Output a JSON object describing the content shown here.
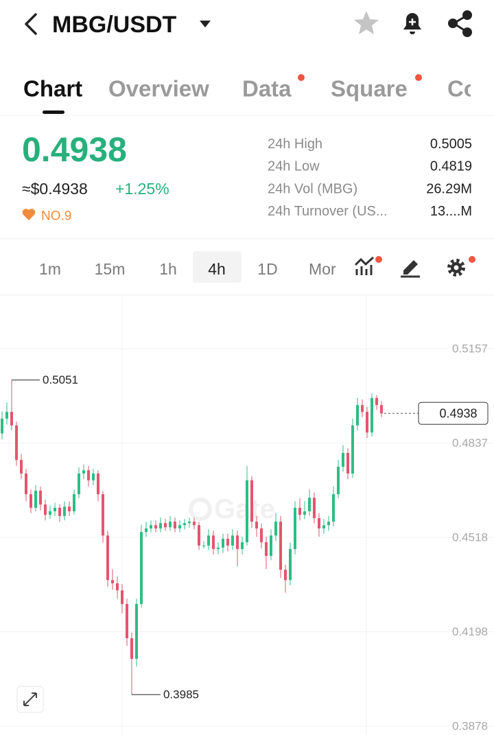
{
  "header": {
    "pair": "MBG/USDT"
  },
  "tabs": [
    "Chart",
    "Overview",
    "Data",
    "Square",
    "Co"
  ],
  "ticker": {
    "price": "0.4938",
    "usd": "≈$0.4938",
    "change": "+1.25%",
    "rank": "NO.9",
    "stats": [
      {
        "label": "24h High",
        "value": "0.5005"
      },
      {
        "label": "24h Low",
        "value": "0.4819"
      },
      {
        "label": "24h Vol (MBG)",
        "value": "26.29M"
      },
      {
        "label": "24h Turnover (US...",
        "value": "13....M"
      }
    ]
  },
  "intervals": [
    "1m",
    "15m",
    "1h",
    "4h",
    "1D",
    "Mor"
  ],
  "chart_data": {
    "type": "candlestick",
    "watermark": "Gate",
    "up_color": "#2ebd85",
    "down_color": "#e2566e",
    "grid": true,
    "ylim": [
      0.3848,
      0.5334
    ],
    "yticks": [
      0.5157,
      0.4837,
      0.4518,
      0.4198,
      0.3878
    ],
    "open": [
      0.487,
      0.492,
      0.4943,
      0.4897,
      0.478,
      0.4734,
      0.4664,
      0.4618,
      0.4676,
      0.4629,
      0.4594,
      0.4606,
      0.4618,
      0.459,
      0.4622,
      0.4606,
      0.4664,
      0.4734,
      0.4745,
      0.4711,
      0.4734,
      0.4664,
      0.4524,
      0.4373,
      0.4362,
      0.4338,
      0.4292,
      0.4176,
      0.4106,
      0.4292,
      0.4536,
      0.4548,
      0.4559,
      0.4548,
      0.4566,
      0.4552,
      0.4571,
      0.4548,
      0.4559,
      0.4566,
      0.4571,
      0.4559,
      0.449,
      0.449,
      0.4524,
      0.4478,
      0.4483,
      0.4513,
      0.449,
      0.4524,
      0.4478,
      0.4501,
      0.4711,
      0.4571,
      0.4548,
      0.4501,
      0.4455,
      0.4524,
      0.4571,
      0.4408,
      0.4373,
      0.4478,
      0.4618,
      0.4594,
      0.4606,
      0.4652,
      0.4583,
      0.4548,
      0.4559,
      0.4571,
      0.4664,
      0.4757,
      0.4804,
      0.4734,
      0.4897,
      0.4966,
      0.4943,
      0.4873,
      0.499,
      0.4966
    ],
    "high": [
      0.4945,
      0.4975,
      0.5051,
      0.491,
      0.48,
      0.475,
      0.468,
      0.4695,
      0.469,
      0.4645,
      0.4625,
      0.4635,
      0.463,
      0.464,
      0.464,
      0.468,
      0.4755,
      0.4765,
      0.476,
      0.475,
      0.4745,
      0.4675,
      0.454,
      0.441,
      0.4385,
      0.436,
      0.431,
      0.4195,
      0.431,
      0.456,
      0.457,
      0.4575,
      0.4575,
      0.4585,
      0.458,
      0.459,
      0.4585,
      0.4575,
      0.458,
      0.4585,
      0.4585,
      0.457,
      0.4505,
      0.4545,
      0.454,
      0.45,
      0.453,
      0.453,
      0.4545,
      0.454,
      0.452,
      0.476,
      0.4725,
      0.459,
      0.4565,
      0.452,
      0.4545,
      0.46,
      0.459,
      0.4425,
      0.45,
      0.464,
      0.465,
      0.464,
      0.468,
      0.467,
      0.46,
      0.458,
      0.459,
      0.469,
      0.478,
      0.483,
      0.482,
      0.492,
      0.499,
      0.4985,
      0.496,
      0.5005,
      0.5,
      0.498
    ],
    "low": [
      0.485,
      0.49,
      0.488,
      0.476,
      0.4715,
      0.464,
      0.46,
      0.4605,
      0.461,
      0.4575,
      0.458,
      0.459,
      0.457,
      0.4575,
      0.459,
      0.4595,
      0.465,
      0.4715,
      0.469,
      0.4695,
      0.464,
      0.45,
      0.435,
      0.434,
      0.431,
      0.426,
      0.415,
      0.3985,
      0.408,
      0.428,
      0.452,
      0.4535,
      0.4535,
      0.4535,
      0.454,
      0.454,
      0.4535,
      0.4535,
      0.4545,
      0.455,
      0.4545,
      0.4475,
      0.448,
      0.4475,
      0.446,
      0.446,
      0.4465,
      0.447,
      0.4475,
      0.442,
      0.446,
      0.449,
      0.455,
      0.452,
      0.448,
      0.441,
      0.444,
      0.4505,
      0.438,
      0.433,
      0.4355,
      0.446,
      0.4575,
      0.458,
      0.459,
      0.4565,
      0.452,
      0.453,
      0.454,
      0.4555,
      0.465,
      0.474,
      0.4715,
      0.472,
      0.488,
      0.4925,
      0.4855,
      0.486,
      0.495,
      0.4925
    ],
    "close": [
      0.492,
      0.4943,
      0.4897,
      0.478,
      0.4734,
      0.4664,
      0.4618,
      0.4676,
      0.4629,
      0.4594,
      0.4606,
      0.4618,
      0.459,
      0.4622,
      0.4606,
      0.4664,
      0.4734,
      0.4745,
      0.4711,
      0.4734,
      0.4664,
      0.4524,
      0.4373,
      0.4362,
      0.4338,
      0.4292,
      0.4176,
      0.4106,
      0.4292,
      0.4536,
      0.4548,
      0.4559,
      0.4548,
      0.4566,
      0.4552,
      0.4571,
      0.4548,
      0.4559,
      0.4566,
      0.4571,
      0.4559,
      0.449,
      0.449,
      0.4524,
      0.4478,
      0.4483,
      0.4513,
      0.449,
      0.4524,
      0.4478,
      0.4501,
      0.4711,
      0.4571,
      0.4548,
      0.4501,
      0.4455,
      0.4524,
      0.4571,
      0.4408,
      0.4373,
      0.4478,
      0.4618,
      0.4594,
      0.4606,
      0.4652,
      0.4583,
      0.4548,
      0.4559,
      0.4571,
      0.4664,
      0.4757,
      0.4804,
      0.4734,
      0.4897,
      0.4966,
      0.4943,
      0.4873,
      0.499,
      0.4966,
      0.4938
    ]
  }
}
